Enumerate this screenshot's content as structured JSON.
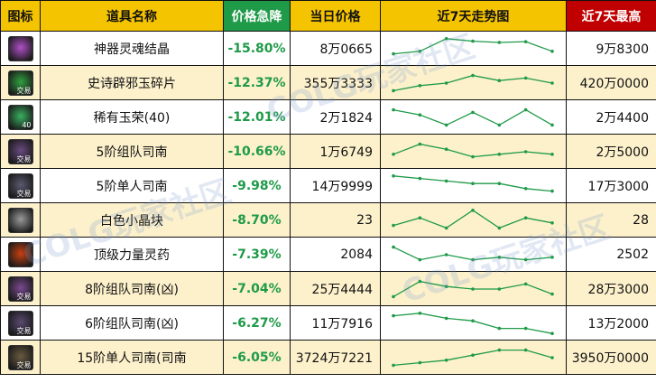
{
  "headers": {
    "icon": "图标",
    "name": "道具名称",
    "change": "价格急降",
    "price": "当日价格",
    "trend": "近7天走势图",
    "max": "近7天最高"
  },
  "watermark": "COLG玩家社区",
  "rows": [
    {
      "name": "神器灵魂结晶",
      "change": "-15.80%",
      "price": "8万0665",
      "max": "9万8300",
      "icon": "purple-soul-crystal-icon",
      "icon_color": "#b050c8",
      "icon_text": "",
      "trend": [
        3,
        4,
        9,
        8,
        7.5,
        7.8,
        4
      ]
    },
    {
      "name": "史诗辟邪玉碎片",
      "change": "-12.37%",
      "price": "355万3333",
      "max": "420万0000",
      "icon": "green-jade-shard-icon",
      "icon_color": "#30a040",
      "icon_text": "交易",
      "trend": [
        2,
        4,
        5,
        8,
        6,
        7,
        5
      ]
    },
    {
      "name": "稀有玉荣(40)",
      "change": "-12.01%",
      "price": "2万1824",
      "max": "2万4400",
      "icon": "green-jade-icon",
      "icon_color": "#38b060",
      "icon_text": "40",
      "trend": [
        8,
        6,
        2,
        7,
        2,
        8,
        2
      ]
    },
    {
      "name": "5阶组队司南",
      "change": "-10.66%",
      "price": "1万6749",
      "max": "2万5000",
      "icon": "compass-icon",
      "icon_color": "#6a4a80",
      "icon_text": "交易",
      "trend": [
        4,
        8,
        6,
        3,
        4,
        5,
        4
      ]
    },
    {
      "name": "5阶单人司南",
      "change": "-9.98%",
      "price": "14万9999",
      "max": "17万3000",
      "icon": "compass-icon",
      "icon_color": "#5a5a70",
      "icon_text": "交易",
      "trend": [
        9,
        8,
        7,
        6,
        6,
        4,
        3
      ]
    },
    {
      "name": "白色小晶块",
      "change": "-8.70%",
      "price": "23",
      "max": "28",
      "icon": "white-crystal-icon",
      "icon_color": "#9a9a9a",
      "icon_text": "",
      "trend": [
        3,
        6,
        2,
        9,
        2,
        6,
        4
      ]
    },
    {
      "name": "顶级力量灵药",
      "change": "-7.39%",
      "price": "2084",
      "max": "2502",
      "icon": "strength-elixir-icon",
      "icon_color": "#c84010",
      "icon_text": "",
      "trend": [
        8,
        3,
        5,
        3,
        4,
        3,
        4
      ]
    },
    {
      "name": "8阶组队司南(凶)",
      "change": "-7.04%",
      "price": "25万4444",
      "max": "28万3000",
      "icon": "compass-icon",
      "icon_color": "#7a4a90",
      "icon_text": "交易",
      "trend": [
        2,
        8,
        6,
        5,
        5,
        7,
        3
      ]
    },
    {
      "name": "6阶组队司南(凶)",
      "change": "-6.27%",
      "price": "11万7916",
      "max": "13万2000",
      "icon": "compass-icon",
      "icon_color": "#5a4a70",
      "icon_text": "交易",
      "trend": [
        8,
        9,
        7,
        6,
        3,
        3,
        1
      ]
    },
    {
      "name": "15阶单人司南(司南",
      "change": "-6.05%",
      "price": "3724万7221",
      "max": "3950万0000",
      "icon": "compass-icon",
      "icon_color": "#6a5a40",
      "icon_text": "交易",
      "trend": [
        2,
        3,
        4,
        6,
        8,
        8,
        5
      ]
    }
  ]
}
